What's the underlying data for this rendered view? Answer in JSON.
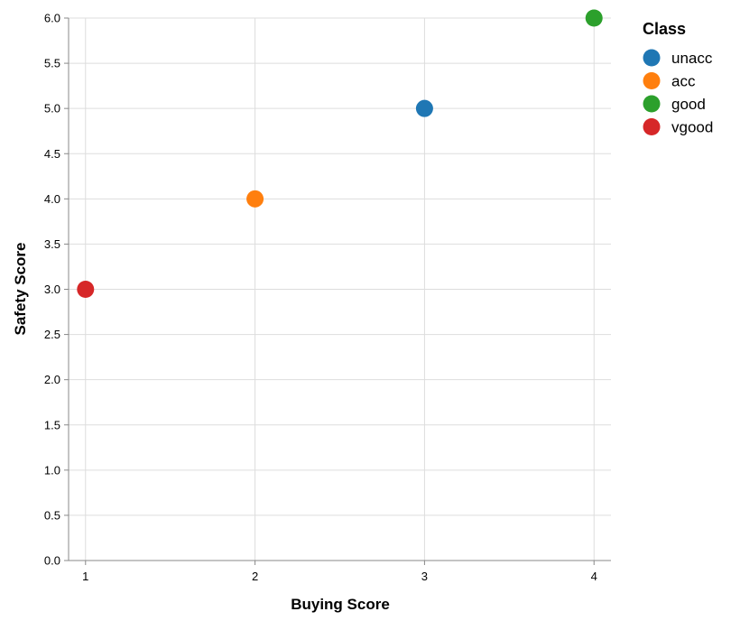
{
  "chart_data": {
    "type": "scatter",
    "xlabel": "Buying Score",
    "ylabel": "Safety Score",
    "x_ticks": [
      "1",
      "2",
      "3",
      "4"
    ],
    "y_ticks": [
      "0.0",
      "0.5",
      "1.0",
      "1.5",
      "2.0",
      "2.5",
      "3.0",
      "3.5",
      "4.0",
      "4.5",
      "5.0",
      "5.5",
      "6.0"
    ],
    "xlim": [
      0.9,
      4.1
    ],
    "ylim": [
      0,
      6
    ],
    "grid": true,
    "legend": {
      "title": "Class",
      "placement": "right",
      "items": [
        {
          "label": "unacc",
          "color": "#1f77b4"
        },
        {
          "label": "acc",
          "color": "#ff7f0e"
        },
        {
          "label": "good",
          "color": "#2ca02c"
        },
        {
          "label": "vgood",
          "color": "#d62728"
        }
      ]
    },
    "series": [
      {
        "name": "unacc",
        "color": "#1f77b4",
        "points": [
          {
            "x": 3,
            "y": 5
          }
        ]
      },
      {
        "name": "acc",
        "color": "#ff7f0e",
        "points": [
          {
            "x": 2,
            "y": 4
          }
        ]
      },
      {
        "name": "good",
        "color": "#2ca02c",
        "points": [
          {
            "x": 4,
            "y": 6
          }
        ]
      },
      {
        "name": "vgood",
        "color": "#d62728",
        "points": [
          {
            "x": 1,
            "y": 3
          }
        ]
      }
    ]
  }
}
